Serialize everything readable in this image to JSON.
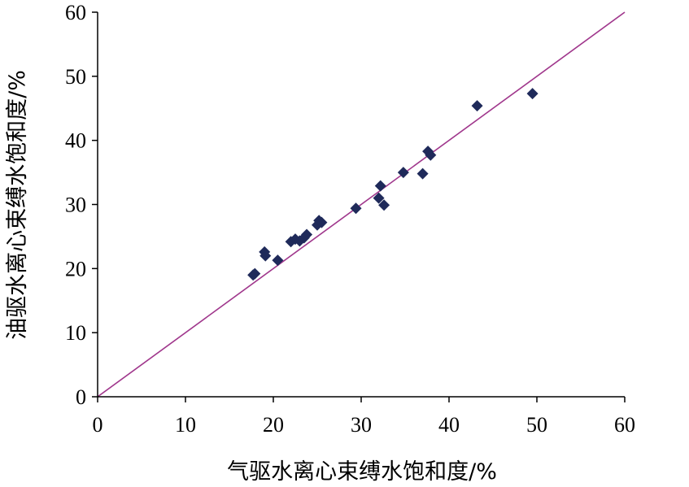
{
  "chart_data": {
    "type": "scatter",
    "title": "",
    "xlabel": "气驱水离心束缚水饱和度/%",
    "ylabel": "油驱水离心束缚水饱和度/%",
    "xlim": [
      0,
      60
    ],
    "ylim": [
      0,
      60
    ],
    "xticks": [
      "0",
      "10",
      "20",
      "30",
      "40",
      "50",
      "60"
    ],
    "yticks": [
      "0",
      "10",
      "20",
      "30",
      "40",
      "50",
      "60"
    ],
    "grid": false,
    "legend": "none",
    "series": [
      {
        "marker": "diamond",
        "color": "#1f2a5a",
        "x": [
          17.7,
          17.9,
          19.0,
          19.1,
          20.5,
          22.0,
          22.5,
          23.0,
          23.5,
          23.8,
          25.0,
          25.2,
          25.5,
          29.4,
          32.0,
          32.2,
          32.6,
          34.8,
          37.0,
          37.6,
          37.9,
          43.2,
          49.5
        ],
        "y": [
          19.0,
          19.2,
          22.6,
          22.0,
          21.3,
          24.2,
          24.6,
          24.3,
          24.8,
          25.3,
          26.8,
          27.5,
          27.2,
          29.4,
          31.0,
          32.9,
          29.9,
          35.0,
          34.8,
          38.3,
          37.7,
          45.4,
          47.3
        ]
      }
    ],
    "reference_line": {
      "x": [
        0,
        60
      ],
      "y": [
        0,
        60
      ],
      "color": "#a0378c"
    }
  }
}
